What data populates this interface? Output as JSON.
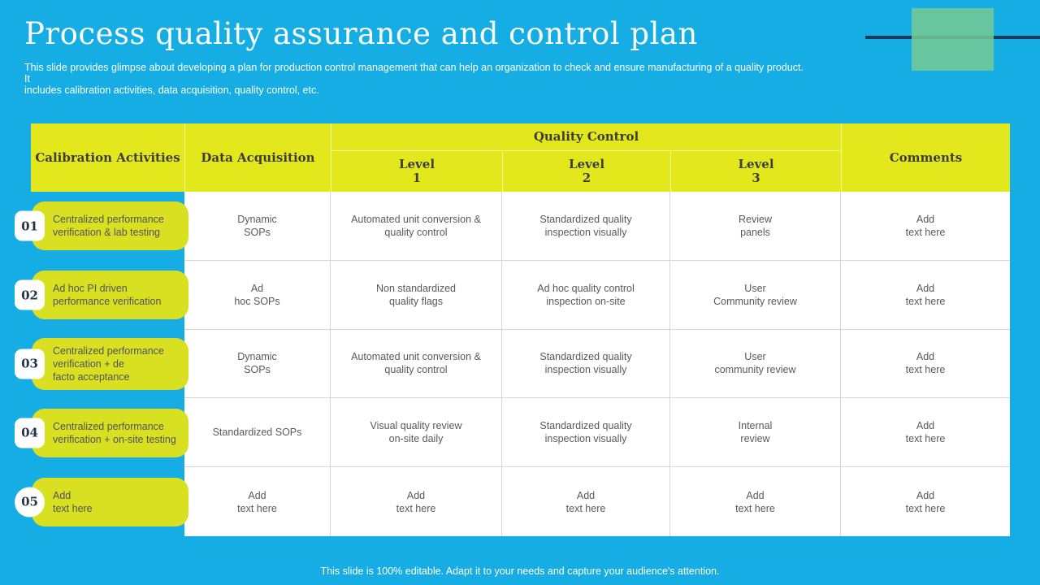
{
  "slide": {
    "title": "Process quality assurance and control plan",
    "subtitle": "This slide provides glimpse about developing a plan for production control management that can help an organization to check and ensure manufacturing of a quality product. It\nincludes calibration activities, data acquisition, quality control, etc.",
    "footer": "This slide is 100% editable. Adapt it to your needs and capture your audience's attention."
  },
  "colors": {
    "background_blue": "#15ADE4",
    "header_yellow": "#E3E81C",
    "pill_yellow": "#D9E021",
    "deco_green": "#75CA94",
    "deco_navy_line": "#1B3A5F",
    "cell_text": "#595959",
    "white": "#FFFFFF"
  },
  "table": {
    "headers": {
      "calibration_activities": "Calibration Activities",
      "data_acquisition": "Data Acquisition",
      "quality_control": "Quality Control",
      "levels": [
        "Level\n1",
        "Level\n2",
        "Level\n3"
      ],
      "comments": "Comments"
    },
    "rows": [
      {
        "num": "01",
        "activity": "Centralized performance\nverification & lab testing",
        "data_acquisition": "Dynamic\nSOPs",
        "level1": "Automated unit conversion &\nquality control",
        "level2": "Standardized quality\ninspection visually",
        "level3": "Review\npanels",
        "comments": "Add\ntext here"
      },
      {
        "num": "02",
        "activity": "Ad hoc PI driven\nperformance verification",
        "data_acquisition": "Ad\nhoc SOPs",
        "level1": "Non standardized\nquality flags",
        "level2": "Ad hoc quality control\ninspection on-site",
        "level3": "User\nCommunity review",
        "comments": "Add\ntext here"
      },
      {
        "num": "03",
        "activity": "Centralized performance\nverification + de\nfacto acceptance",
        "data_acquisition": "Dynamic\nSOPs",
        "level1": "Automated unit conversion &\nquality control",
        "level2": "Standardized quality\ninspection visually",
        "level3": "User\ncommunity review",
        "comments": "Add\ntext here"
      },
      {
        "num": "04",
        "activity": "Centralized performance\nverification + on-site testing",
        "data_acquisition": "Standardized SOPs",
        "level1": "Visual quality review\non-site daily",
        "level2": "Standardized quality\ninspection visually",
        "level3": "Internal\nreview",
        "comments": "Add\ntext here"
      },
      {
        "num": "05",
        "activity": "Add\ntext here",
        "data_acquisition": "Add\ntext here",
        "level1": "Add\ntext here",
        "level2": "Add\ntext here",
        "level3": "Add\ntext here",
        "comments": "Add\ntext here"
      }
    ]
  }
}
